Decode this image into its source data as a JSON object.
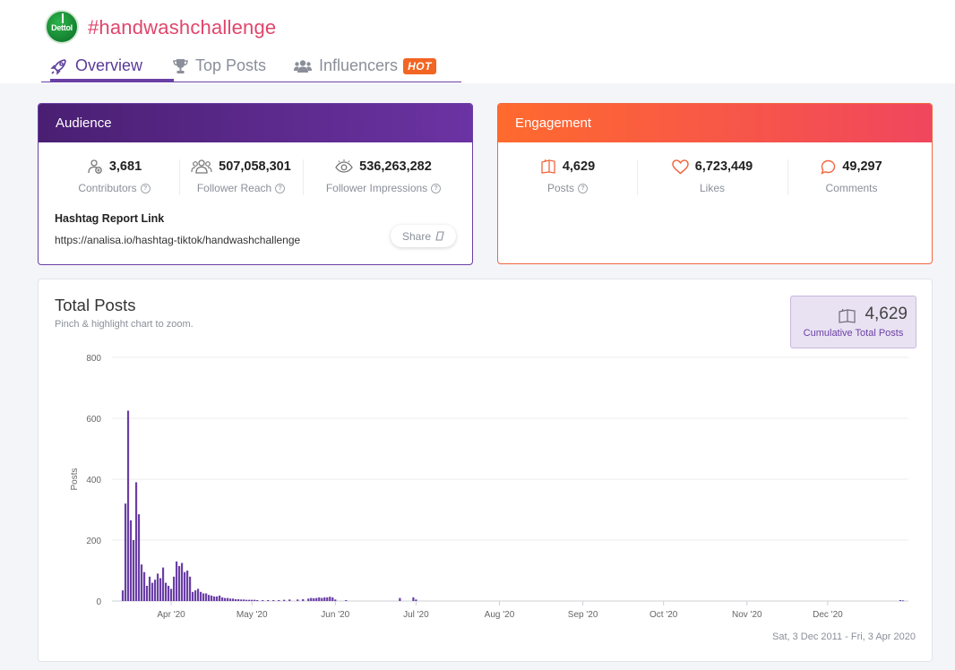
{
  "header": {
    "brand_logo_text": "Dettol",
    "hashtag": "#handwashchallenge"
  },
  "tabs": [
    {
      "label": "Overview",
      "icon": "rocket-icon",
      "active": true
    },
    {
      "label": "Top Posts",
      "icon": "trophy-icon",
      "active": false
    },
    {
      "label": "Influencers",
      "icon": "users-icon",
      "active": false,
      "badge": "HOT"
    }
  ],
  "audience": {
    "title": "Audience",
    "metrics": [
      {
        "value": "3,681",
        "label": "Contributors",
        "icon": "contributors-icon"
      },
      {
        "value": "507,058,301",
        "label": "Follower Reach",
        "icon": "group-icon"
      },
      {
        "value": "536,263,282",
        "label": "Follower Impressions",
        "icon": "eye-icon"
      }
    ],
    "report_link_label": "Hashtag Report Link",
    "report_link_url": "https://analisa.io/hashtag-tiktok/handwashchallenge",
    "share_label": "Share"
  },
  "engagement": {
    "title": "Engagement",
    "metrics": [
      {
        "value": "4,629",
        "label": "Posts",
        "icon": "posts-icon"
      },
      {
        "value": "6,723,449",
        "label": "Likes",
        "icon": "heart-icon"
      },
      {
        "value": "49,297",
        "label": "Comments",
        "icon": "comment-icon"
      }
    ],
    "colors": {
      "accent": "#f2663f",
      "audience_accent": "#6a3fa6"
    }
  },
  "chart_section": {
    "title": "Total Posts",
    "subtitle": "Pinch & highlight chart to zoom.",
    "cumulative_value": "4,629",
    "cumulative_label": "Cumulative Total Posts",
    "date_range": "Sat, 3 Dec 2011 - Fri, 3 Apr 2020"
  },
  "chart_data": {
    "type": "bar",
    "ylabel": "Posts",
    "xlabel": "",
    "ylim": [
      0,
      800
    ],
    "yticks": [
      0,
      200,
      400,
      600,
      800
    ],
    "xlim": [
      "2020-03-10",
      "2020-12-31"
    ],
    "xticks": [
      {
        "date": "2020-04-01",
        "label": "Apr '20"
      },
      {
        "date": "2020-05-01",
        "label": "May '20"
      },
      {
        "date": "2020-06-01",
        "label": "Jun '20"
      },
      {
        "date": "2020-07-01",
        "label": "Jul '20"
      },
      {
        "date": "2020-08-01",
        "label": "Aug '20"
      },
      {
        "date": "2020-09-01",
        "label": "Sep '20"
      },
      {
        "date": "2020-10-01",
        "label": "Oct '20"
      },
      {
        "date": "2020-11-01",
        "label": "Nov '20"
      },
      {
        "date": "2020-12-01",
        "label": "Dec '20"
      }
    ],
    "color": "#6a3fa6",
    "grid": true,
    "series": [
      {
        "x": [
          "2020-03-14",
          "2020-03-15",
          "2020-03-16",
          "2020-03-17",
          "2020-03-18",
          "2020-03-19",
          "2020-03-20",
          "2020-03-21",
          "2020-03-22",
          "2020-03-23",
          "2020-03-24",
          "2020-03-25",
          "2020-03-26",
          "2020-03-27",
          "2020-03-28",
          "2020-03-29",
          "2020-03-30",
          "2020-03-31",
          "2020-04-01",
          "2020-04-02",
          "2020-04-03",
          "2020-04-04",
          "2020-04-05",
          "2020-04-06",
          "2020-04-07",
          "2020-04-08",
          "2020-04-09",
          "2020-04-10",
          "2020-04-11",
          "2020-04-12",
          "2020-04-13",
          "2020-04-14",
          "2020-04-15",
          "2020-04-16",
          "2020-04-17",
          "2020-04-18",
          "2020-04-19",
          "2020-04-20",
          "2020-04-21",
          "2020-04-22",
          "2020-04-23",
          "2020-04-24",
          "2020-04-25",
          "2020-04-26",
          "2020-04-27",
          "2020-04-28",
          "2020-04-29",
          "2020-04-30",
          "2020-05-01",
          "2020-05-02",
          "2020-05-03",
          "2020-05-05",
          "2020-05-07",
          "2020-05-09",
          "2020-05-11",
          "2020-05-13",
          "2020-05-15",
          "2020-05-18",
          "2020-05-20",
          "2020-05-22",
          "2020-05-23",
          "2020-05-24",
          "2020-05-25",
          "2020-05-26",
          "2020-05-27",
          "2020-05-28",
          "2020-05-29",
          "2020-05-30",
          "2020-05-31",
          "2020-06-01",
          "2020-06-05",
          "2020-06-25",
          "2020-06-30",
          "2020-07-01",
          "2020-12-28",
          "2020-12-29"
        ],
        "y": [
          35,
          320,
          625,
          265,
          200,
          390,
          285,
          120,
          95,
          50,
          80,
          60,
          70,
          90,
          75,
          110,
          60,
          50,
          40,
          80,
          130,
          115,
          125,
          95,
          100,
          80,
          30,
          35,
          40,
          30,
          25,
          25,
          20,
          18,
          15,
          15,
          18,
          12,
          10,
          10,
          8,
          8,
          6,
          6,
          5,
          5,
          4,
          4,
          4,
          4,
          3,
          3,
          3,
          3,
          3,
          4,
          5,
          5,
          6,
          8,
          10,
          9,
          10,
          12,
          10,
          12,
          12,
          14,
          12,
          5,
          3,
          10,
          12,
          5,
          3,
          2
        ]
      }
    ]
  }
}
